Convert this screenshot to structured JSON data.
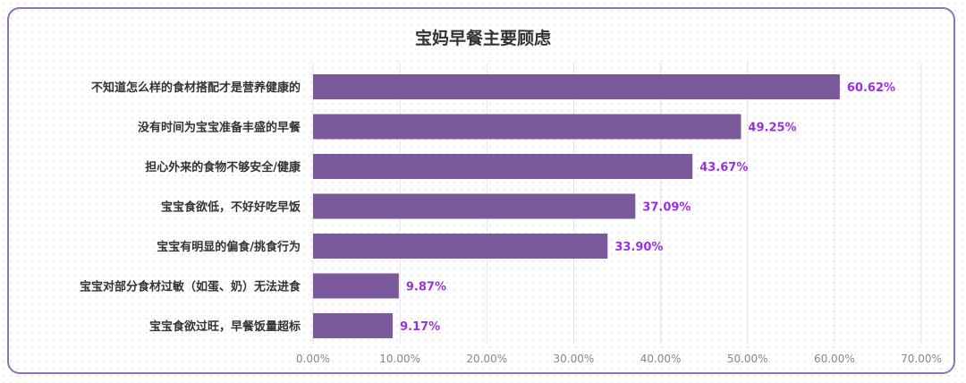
{
  "chart_data": {
    "type": "bar",
    "orientation": "horizontal",
    "title": "宝妈早餐主要顾虑",
    "categories": [
      "不知道怎么样的食材搭配才是营养健康的",
      "没有时间为宝宝准备丰盛的早餐",
      "担心外来的食物不够安全/健康",
      "宝宝食欲低，不好好吃早饭",
      "宝宝有明显的偏食/挑食行为",
      "宝宝对部分食材过敏（如蛋、奶）无法进食",
      "宝宝食欲过旺，早餐饭量超标"
    ],
    "values": [
      60.62,
      49.25,
      43.67,
      37.09,
      33.9,
      9.87,
      9.17
    ],
    "value_labels": [
      "60.62%",
      "49.25%",
      "43.67%",
      "37.09%",
      "33.90%",
      "9.87%",
      "9.17%"
    ],
    "xlim": [
      0,
      70
    ],
    "xticks": [
      0,
      10,
      20,
      30,
      40,
      50,
      60,
      70
    ],
    "xtick_labels": [
      "0.00%",
      "10.00%",
      "20.00%",
      "30.00%",
      "40.00%",
      "50.00%",
      "60.00%",
      "70.00%"
    ],
    "grid": true,
    "colors": {
      "bar": "#7b5a9c",
      "value_label": "#9b30e0",
      "frame": "#8e74b0"
    }
  }
}
